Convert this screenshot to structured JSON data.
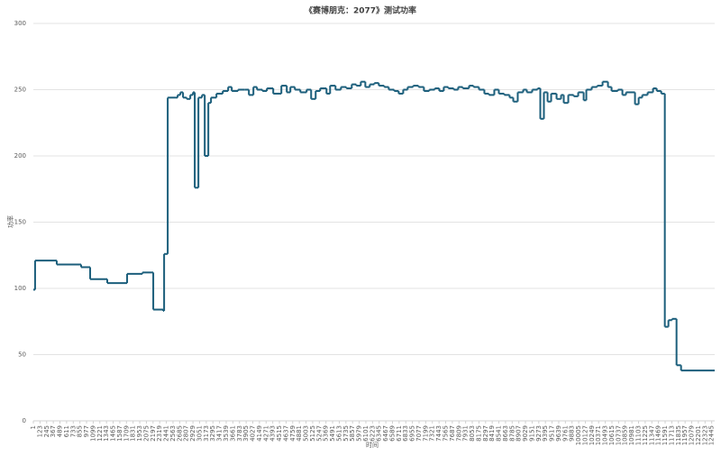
{
  "chart_data": {
    "type": "line",
    "step": true,
    "title": "《赛博朋克：2077》测试功率",
    "x_label": "时间",
    "y_label": "功率",
    "x": [
      1,
      33,
      430,
      877,
      1043,
      1357,
      1721,
      2003,
      2201,
      2383,
      2400,
      2466,
      2648,
      2698,
      2747,
      2814,
      2880,
      2929,
      2962,
      3029,
      3095,
      3145,
      3211,
      3260,
      3360,
      3476,
      3575,
      3641,
      3757,
      3873,
      3955,
      4038,
      4104,
      4203,
      4286,
      4402,
      4551,
      4650,
      4716,
      4799,
      4899,
      5014,
      5097,
      5180,
      5263,
      5379,
      5445,
      5544,
      5644,
      5743,
      5842,
      5925,
      6008,
      6091,
      6173,
      6256,
      6339,
      6438,
      6521,
      6620,
      6703,
      6786,
      6868,
      6968,
      7067,
      7166,
      7265,
      7365,
      7448,
      7530,
      7613,
      7713,
      7795,
      7878,
      7994,
      8076,
      8176,
      8275,
      8358,
      8457,
      8540,
      8639,
      8738,
      8805,
      8887,
      8987,
      9053,
      9152,
      9251,
      9301,
      9367,
      9434,
      9500,
      9599,
      9682,
      9731,
      9814,
      9913,
      9996,
      10096,
      10145,
      10244,
      10344,
      10443,
      10542,
      10608,
      10724,
      10807,
      10873,
      11038,
      11105,
      11171,
      11270,
      11369,
      11436,
      11519,
      11585,
      11651,
      11717,
      11800,
      11883
    ],
    "series": [
      {
        "name": "功率",
        "color": "#1b5e7b",
        "values": [
          99,
          121,
          118,
          116,
          107,
          104,
          111,
          112,
          84,
          83,
          126,
          244,
          246,
          248,
          244,
          243,
          246,
          248,
          176,
          244,
          246,
          200,
          240,
          244,
          247,
          249,
          252,
          249,
          250,
          250,
          246,
          252,
          250,
          249,
          251,
          247,
          253,
          248,
          252,
          250,
          248,
          250,
          243,
          249,
          251,
          247,
          253,
          250,
          252,
          251,
          254,
          253,
          256,
          252,
          254,
          255,
          253,
          252,
          250,
          249,
          247,
          250,
          252,
          253,
          252,
          249,
          250,
          251,
          249,
          252,
          251,
          250,
          252,
          251,
          253,
          252,
          250,
          247,
          246,
          250,
          247,
          246,
          244,
          241,
          248,
          250,
          248,
          250,
          251,
          228,
          248,
          241,
          247,
          243,
          246,
          240,
          246,
          245,
          248,
          242,
          250,
          252,
          253,
          256,
          252,
          249,
          250,
          246,
          248,
          239,
          244,
          246,
          248,
          251,
          249,
          247,
          71,
          76,
          77,
          42,
          38
        ]
      }
    ],
    "xlim": [
      1,
      12500
    ],
    "xticks": [
      1,
      123,
      245,
      367,
      489,
      611,
      733,
      855,
      977,
      1099,
      1221,
      1343,
      1465,
      1587,
      1709,
      1831,
      1953,
      2075,
      2197,
      2319,
      2441,
      2563,
      2685,
      2807,
      2929,
      3051,
      3173,
      3295,
      3417,
      3539,
      3661,
      3783,
      3905,
      4027,
      4149,
      4271,
      4393,
      4515,
      4637,
      4759,
      4881,
      5003,
      5125,
      5247,
      5369,
      5491,
      5613,
      5735,
      5857,
      5979,
      6101,
      6223,
      6345,
      6467,
      6589,
      6711,
      6833,
      6955,
      7077,
      7199,
      7321,
      7443,
      7565,
      7687,
      7809,
      7931,
      8053,
      8175,
      8297,
      8419,
      8541,
      8663,
      8785,
      8907,
      9029,
      9151,
      9273,
      9395,
      9517,
      9639,
      9761,
      9883,
      10005,
      10127,
      10249,
      10371,
      10493,
      10615,
      10737,
      10859,
      10981,
      11103,
      11225,
      11347,
      11469,
      11591,
      11713,
      11835,
      11957,
      12079,
      12201,
      12323,
      12445
    ],
    "ylim": [
      0,
      300
    ],
    "yticks": [
      0,
      50,
      100,
      150,
      200,
      250,
      300
    ],
    "grid": true
  }
}
